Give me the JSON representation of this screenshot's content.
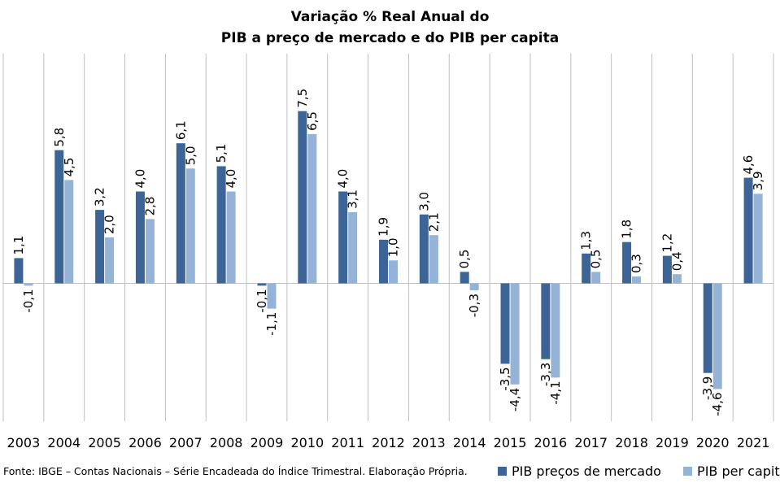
{
  "chart_data": {
    "type": "bar",
    "title_line1": "Variação % Real Anual do",
    "title_line2": "PIB a preço de mercado e do PIB per capita",
    "categories": [
      "2003",
      "2004",
      "2005",
      "2006",
      "2007",
      "2008",
      "2009",
      "2010",
      "2011",
      "2012",
      "2013",
      "2014",
      "2015",
      "2016",
      "2017",
      "2018",
      "2019",
      "2020",
      "2021"
    ],
    "series": [
      {
        "name": "PIB preços de mercado",
        "color": "#3C6496",
        "values": [
          1.1,
          5.8,
          3.2,
          4.0,
          6.1,
          5.1,
          -0.1,
          7.5,
          4.0,
          1.9,
          3.0,
          0.5,
          -3.5,
          -3.3,
          1.3,
          1.8,
          1.2,
          -3.9,
          4.6
        ],
        "labels": [
          "1,1",
          "5,8",
          "3,2",
          "4,0",
          "6,1",
          "5,1",
          "-0,1",
          "7,5",
          "4,0",
          "1,9",
          "3,0",
          "0,5",
          "-3,5",
          "-3,3",
          "1,3",
          "1,8",
          "1,2",
          "-3,9",
          "4,6"
        ]
      },
      {
        "name": "PIB per capita",
        "color": "#95B3D7",
        "values": [
          -0.1,
          4.5,
          2.0,
          2.8,
          5.0,
          4.0,
          -1.1,
          6.5,
          3.1,
          1.0,
          2.1,
          -0.3,
          -4.4,
          -4.1,
          0.5,
          0.3,
          0.4,
          -4.6,
          3.9
        ],
        "labels": [
          "-0,1",
          "4,5",
          "2,0",
          "2,8",
          "5,0",
          "4,0",
          "-1,1",
          "6,5",
          "3,1",
          "1,0",
          "2,1",
          "-0,3",
          "-4,4",
          "-4,1",
          "0,5",
          "0,3",
          "0,4",
          "-4,6",
          "3,9"
        ]
      }
    ],
    "ylim": [
      -6.0,
      10.0
    ],
    "grid": false,
    "legend_position": "bottom-right",
    "axis_color": "#BFBFBF"
  },
  "source_note": "Fonte: IBGE – Contas Nacionais – Série Encadeada do Índice Trimestral. Elaboração Própria."
}
